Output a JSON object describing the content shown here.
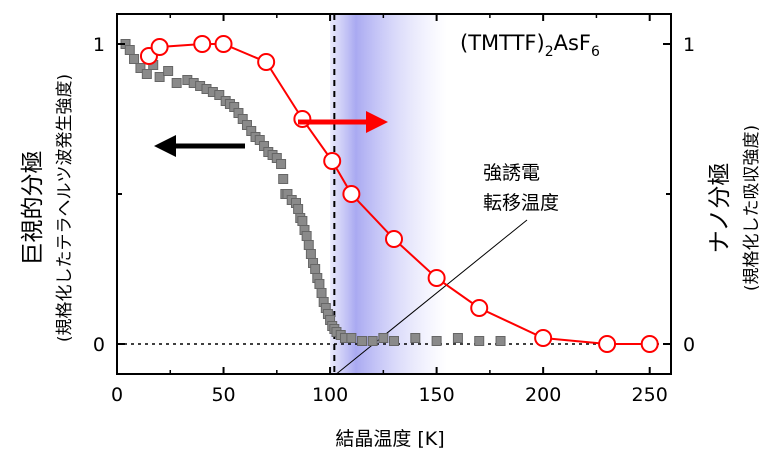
{
  "chart_data": {
    "type": "scatter",
    "title": "(TMTTF)",
    "title_sub": "2",
    "title_mid": "AsF",
    "title_sub2": "6",
    "xlabel": "結晶温度 [K]",
    "ylabel_left": "巨視的分極",
    "ylabel_left_sub": "(規格化したテラヘルツ波発生強度)",
    "ylabel_right": "ナノ分極",
    "ylabel_right_sub": "(規格化した吸収強度)",
    "annotation_line1": "強誘電",
    "annotation_line2": "転移温度",
    "xlim": [
      0,
      260
    ],
    "ylim": [
      -0.1,
      1.1
    ],
    "x_ticks": [
      0,
      50,
      100,
      150,
      200,
      250
    ],
    "x_tick_labels": [
      "0",
      "50",
      "100",
      "150",
      "200",
      "250"
    ],
    "y_ticks_left": [
      0,
      1
    ],
    "y_tick_labels_left": [
      "0",
      "1"
    ],
    "y_ticks_right": [
      0,
      1
    ],
    "y_tick_labels_right": [
      "0",
      "1"
    ],
    "transition_temperature": 102,
    "shaded_band": [
      100,
      155
    ],
    "arrow_left_color": "#000000",
    "arrow_right_color": "#ff0000",
    "series": [
      {
        "axis": "left",
        "marker": "square",
        "color": "#8a8a8a",
        "x": [
          4,
          6,
          8,
          11,
          14,
          17,
          20,
          24,
          28,
          33,
          36,
          39,
          42,
          45,
          48,
          51,
          53,
          55,
          57,
          59,
          61,
          63,
          65,
          67,
          69,
          71,
          73,
          75,
          77,
          78,
          79,
          80,
          82,
          84,
          85,
          86,
          87,
          88,
          89,
          90,
          91,
          92,
          93,
          94,
          95,
          96,
          97,
          98,
          99,
          100,
          101,
          102,
          103,
          105,
          107,
          110,
          115,
          120,
          125,
          130,
          140,
          150,
          160,
          170,
          180
        ],
        "y": [
          1.0,
          0.98,
          0.95,
          0.92,
          0.9,
          0.93,
          0.89,
          0.91,
          0.87,
          0.88,
          0.87,
          0.86,
          0.85,
          0.84,
          0.83,
          0.81,
          0.8,
          0.79,
          0.77,
          0.75,
          0.73,
          0.71,
          0.69,
          0.68,
          0.66,
          0.64,
          0.63,
          0.62,
          0.6,
          0.55,
          0.5,
          0.5,
          0.48,
          0.47,
          0.45,
          0.42,
          0.41,
          0.38,
          0.36,
          0.33,
          0.3,
          0.27,
          0.25,
          0.22,
          0.2,
          0.17,
          0.14,
          0.12,
          0.1,
          0.08,
          0.06,
          0.05,
          0.04,
          0.03,
          0.02,
          0.02,
          0.01,
          0.01,
          0.02,
          0.01,
          0.02,
          0.01,
          0.02,
          0.01,
          0.01
        ]
      },
      {
        "axis": "right",
        "marker": "open-circle",
        "color": "#ff0000",
        "x": [
          15,
          20,
          40,
          50,
          70,
          87,
          101,
          110,
          130,
          150,
          170,
          200,
          230,
          250
        ],
        "y": [
          0.96,
          0.99,
          1.0,
          1.0,
          0.94,
          0.75,
          0.61,
          0.5,
          0.35,
          0.22,
          0.12,
          0.02,
          0.0,
          0.0
        ]
      }
    ]
  }
}
